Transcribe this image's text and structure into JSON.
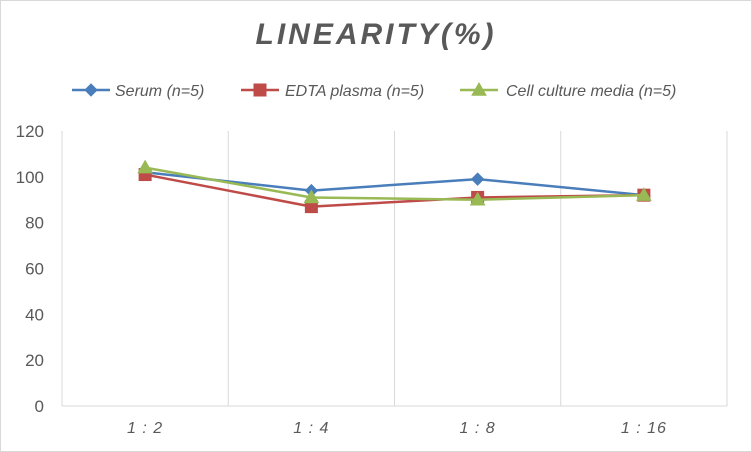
{
  "chart_data": {
    "type": "line",
    "title": "LINEARITY(%)",
    "xlabel": "",
    "ylabel": "",
    "categories": [
      "1:2",
      "1:4",
      "1:8",
      "1:16"
    ],
    "ylim": [
      0,
      120
    ],
    "yticks": [
      0,
      20,
      40,
      60,
      80,
      100,
      120
    ],
    "grid": "vertical",
    "legend_position": "top",
    "series": [
      {
        "name": "Serum (n=5)",
        "values": [
          102,
          94,
          99,
          92
        ],
        "color": "#4a7ebb",
        "marker": "diamond"
      },
      {
        "name": "EDTA plasma (n=5)",
        "values": [
          101,
          87,
          91,
          92
        ],
        "color": "#be4b48",
        "marker": "square"
      },
      {
        "name": "Cell culture media (n=5)",
        "values": [
          104,
          91,
          90,
          92
        ],
        "color": "#98b954",
        "marker": "triangle"
      }
    ]
  }
}
